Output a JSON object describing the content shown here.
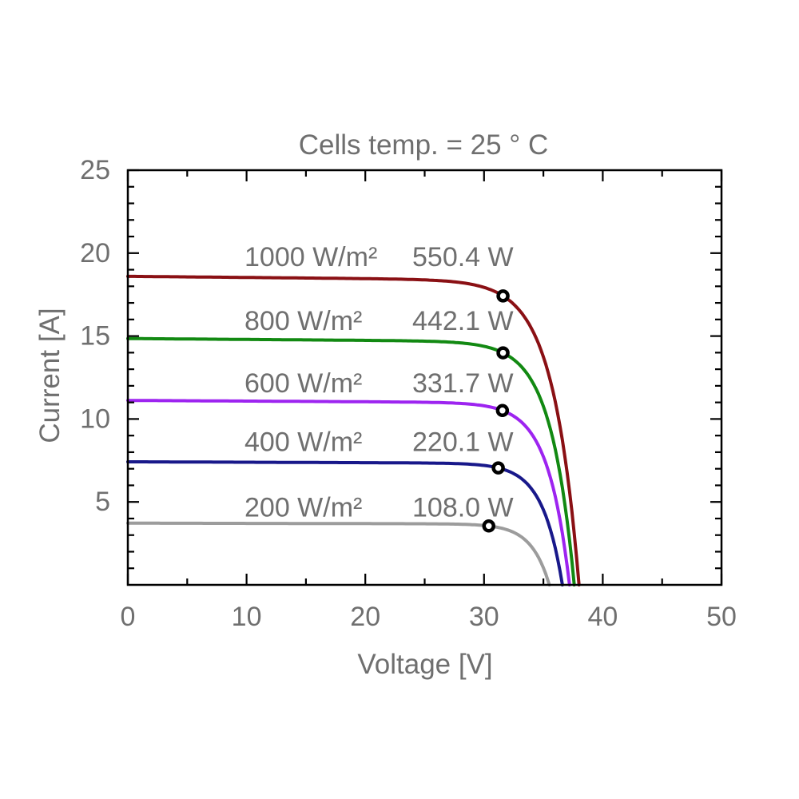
{
  "chart_data": {
    "type": "line",
    "title": "Cells temp. = 25 ° C",
    "xlabel": "Voltage [V]",
    "ylabel": "Current [A]",
    "xlim": [
      0,
      50
    ],
    "ylim": [
      0,
      25
    ],
    "x_tick_labels": [
      "0",
      "10",
      "20",
      "30",
      "40",
      "50"
    ],
    "y_tick_labels": [
      "5",
      "10",
      "15",
      "20",
      "25"
    ],
    "x_major_ticks": [
      0,
      10,
      20,
      30,
      40,
      50
    ],
    "y_major_ticks": [
      5,
      10,
      15,
      20,
      25
    ],
    "x_minor_step": 5,
    "y_minor_step": 1,
    "grid": false,
    "legend": "inline-curve-labels",
    "axis_color": "#000000",
    "text_color": "#6f6f6f",
    "marker_style": "open-circle-black-on-white",
    "series": [
      {
        "name": "irradiance-1000",
        "irradiance_label": "1000 W/m²",
        "power_label": "550.4 W",
        "color": "#8a1014",
        "isc_a": 18.6,
        "voc_v": 38.0,
        "mpp": {
          "v": 31.6,
          "i": 17.42,
          "p_w": 550.4
        },
        "label_row_i": 19.75
      },
      {
        "name": "irradiance-800",
        "irradiance_label": "800 W/m²",
        "power_label": "442.1 W",
        "color": "#128912",
        "isc_a": 14.85,
        "voc_v": 37.6,
        "mpp": {
          "v": 31.6,
          "i": 13.99,
          "p_w": 442.1
        },
        "label_row_i": 15.9
      },
      {
        "name": "irradiance-600",
        "irradiance_label": "600 W/m²",
        "power_label": "331.7 W",
        "color": "#9d24f0",
        "isc_a": 11.12,
        "voc_v": 37.2,
        "mpp": {
          "v": 31.55,
          "i": 10.51,
          "p_w": 331.7
        },
        "label_row_i": 12.15
      },
      {
        "name": "irradiance-400",
        "irradiance_label": "400 W/m²",
        "power_label": "220.1 W",
        "color": "#18188a",
        "isc_a": 7.42,
        "voc_v": 36.6,
        "mpp": {
          "v": 31.2,
          "i": 7.05,
          "p_w": 220.1
        },
        "label_row_i": 8.6
      },
      {
        "name": "irradiance-200",
        "irradiance_label": "200 W/m²",
        "power_label": "108.0 W",
        "color": "#9c9c9c",
        "isc_a": 3.72,
        "voc_v": 35.5,
        "mpp": {
          "v": 30.4,
          "i": 3.55,
          "p_w": 108.0
        },
        "label_row_i": 4.65
      }
    ]
  }
}
